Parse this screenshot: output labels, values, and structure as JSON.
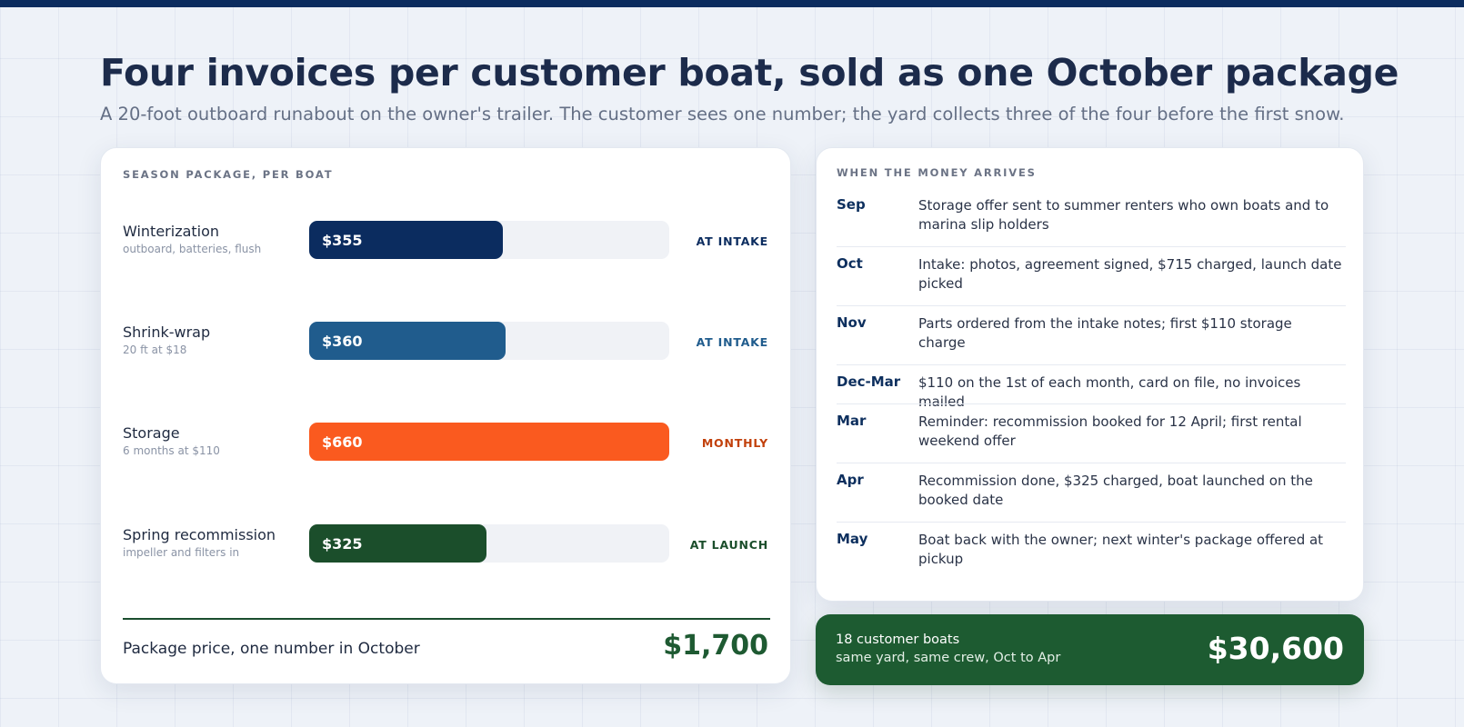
{
  "title": "Four invoices per customer boat, sold as one October package",
  "subtitle": "A 20-foot outboard runabout on the owner's trailer. The customer sees one number; the yard collects three of the four before the first snow.",
  "chart_data": {
    "type": "bar",
    "title": "SEASON PACKAGE, PER BOAT",
    "xlim": [
      0,
      660
    ],
    "categories": [
      "Winterization",
      "Shrink-wrap",
      "Storage",
      "Spring recommission"
    ],
    "descriptions": [
      "outboard, batteries, flush",
      "20 ft at $18",
      "6 months at $110",
      "impeller and filters in"
    ],
    "values": [
      355,
      360,
      660,
      325
    ],
    "value_labels": [
      "$355",
      "$360",
      "$660",
      "$325"
    ],
    "timing": [
      "AT INTAKE",
      "AT INTAKE",
      "MONTHLY",
      "AT LAUNCH"
    ],
    "bar_colors": [
      "#0b2c5f",
      "#205c8d",
      "#fa5a1f",
      "#1b4e2b"
    ],
    "timing_colors": [
      "#0b2c5f",
      "#205c8d",
      "#c2410c",
      "#1b4e2b"
    ],
    "total_label": "Package price, one number in October",
    "total_value": "$1,700"
  },
  "timeline": {
    "title": "WHEN THE MONEY ARRIVES",
    "rows": [
      {
        "month": "Sep",
        "text": "Storage offer sent to summer renters who own boats and to marina slip holders"
      },
      {
        "month": "Oct",
        "text": "Intake: photos, agreement signed, $715 charged, launch date picked"
      },
      {
        "month": "Nov",
        "text": "Parts ordered from the intake notes; first $110 storage charge"
      },
      {
        "month": "Dec-Mar",
        "text": "$110 on the 1st of each month, card on file, no invoices mailed"
      },
      {
        "month": "Mar",
        "text": "Reminder: recommission booked for 12 April; first rental weekend offer"
      },
      {
        "month": "Apr",
        "text": "Recommission done, $325 charged, boat launched on the booked date"
      },
      {
        "month": "May",
        "text": "Boat back with the owner; next winter's package offered at pickup"
      }
    ]
  },
  "summary": {
    "line1": "18 customer boats",
    "line2": "same yard, same crew, Oct to Apr",
    "value": "$30,600"
  }
}
